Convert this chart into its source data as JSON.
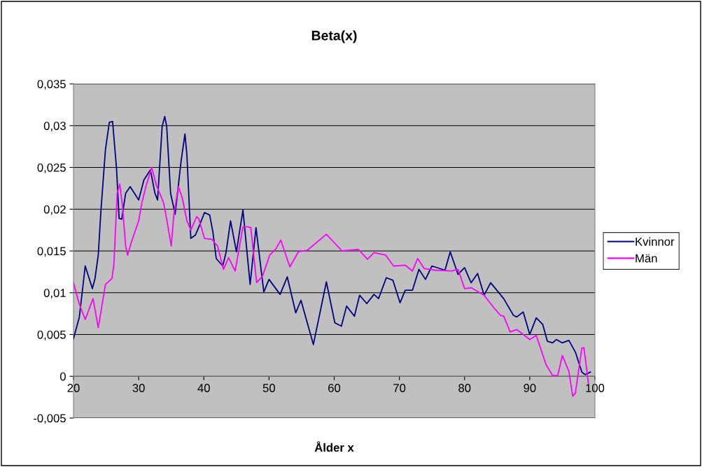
{
  "chart_data": {
    "type": "line",
    "title": "Beta(x)",
    "xlabel": "Ålder x",
    "xlim": [
      20,
      100
    ],
    "xticks": [
      20,
      30,
      40,
      50,
      60,
      70,
      80,
      90,
      100
    ],
    "ylim": [
      -0.005,
      0.035
    ],
    "yticks": [
      {
        "value": -0.005,
        "label": "-0,005"
      },
      {
        "value": 0,
        "label": "0"
      },
      {
        "value": 0.005,
        "label": "0,005"
      },
      {
        "value": 0.01,
        "label": "0,01"
      },
      {
        "value": 0.015,
        "label": "0,015"
      },
      {
        "value": 0.02,
        "label": "0,02"
      },
      {
        "value": 0.025,
        "label": "0,025"
      },
      {
        "value": 0.03,
        "label": "0,03"
      },
      {
        "value": 0.035,
        "label": "0,035"
      }
    ],
    "grid": "y",
    "legend": "right",
    "marker": "none",
    "line_style": "solid",
    "series": [
      {
        "name": "Kvinnor",
        "color": "#000080",
        "x": [
          20,
          20.9,
          21.8,
          22.9,
          23.3,
          23.8,
          24.2,
          24.9,
          25.5,
          26.0,
          26.6,
          27.0,
          27.4,
          28.0,
          28.7,
          30.0,
          30.8,
          31.8,
          32.5,
          32.9,
          33.6,
          34.0,
          34.3,
          34.9,
          35.6,
          36.5,
          37.1,
          37.4,
          38.0,
          38.7,
          39.3,
          40.1,
          40.9,
          41.4,
          41.9,
          42.9,
          43.4,
          44.1,
          45.0,
          46.0,
          47.1,
          48.0,
          49.2,
          50.0,
          51.7,
          52.8,
          54.1,
          54.9,
          56.8,
          58.8,
          60.1,
          61.1,
          61.9,
          63.1,
          63.9,
          65.0,
          66.1,
          66.8,
          68.0,
          69.0,
          70.1,
          70.9,
          72.0,
          73.0,
          74.0,
          75.0,
          77.0,
          77.8,
          79.0,
          80.0,
          81.0,
          82.0,
          83.0,
          84.0,
          86.0,
          87.5,
          88.0,
          89.0,
          90.0,
          91.0,
          92.0,
          92.7,
          93.5,
          94.1,
          95.0,
          96.0,
          97.0,
          98.0,
          98.5,
          99.3
        ],
        "values": [
          0.0045,
          0.0071,
          0.0132,
          0.0105,
          0.0117,
          0.0145,
          0.0197,
          0.0271,
          0.0304,
          0.0305,
          0.0249,
          0.0189,
          0.0188,
          0.0219,
          0.0227,
          0.0211,
          0.0235,
          0.0247,
          0.0219,
          0.0211,
          0.0299,
          0.0311,
          0.0299,
          0.0219,
          0.0194,
          0.0257,
          0.029,
          0.0265,
          0.0165,
          0.0169,
          0.018,
          0.0196,
          0.0193,
          0.0172,
          0.0141,
          0.0132,
          0.0148,
          0.0186,
          0.0149,
          0.0199,
          0.011,
          0.0178,
          0.0101,
          0.0116,
          0.0098,
          0.0119,
          0.0076,
          0.0091,
          0.0038,
          0.0113,
          0.0064,
          0.006,
          0.0084,
          0.0072,
          0.0097,
          0.0087,
          0.0098,
          0.0093,
          0.0118,
          0.0115,
          0.0088,
          0.0103,
          0.0103,
          0.0128,
          0.0116,
          0.0132,
          0.0127,
          0.0149,
          0.0122,
          0.013,
          0.0112,
          0.0123,
          0.0097,
          0.0112,
          0.0093,
          0.0073,
          0.0071,
          0.0077,
          0.005,
          0.007,
          0.0062,
          0.0042,
          0.004,
          0.0044,
          0.004,
          0.0043,
          0.0029,
          0.0005,
          0.0002,
          0.0005
        ]
      },
      {
        "name": "Män",
        "color": "#ff00ff",
        "x": [
          20,
          20.9,
          21.8,
          23.0,
          23.8,
          24.9,
          25.9,
          26.2,
          26.7,
          27.1,
          27.5,
          28.0,
          28.3,
          28.9,
          30.0,
          30.5,
          31.1,
          32.0,
          32.7,
          33.8,
          34.3,
          35.0,
          35.4,
          36.1,
          36.7,
          37.4,
          38.0,
          38.9,
          39.2,
          40.1,
          41.2,
          42.1,
          43.0,
          43.8,
          44.8,
          46.0,
          46.7,
          47.2,
          48.1,
          49.0,
          50.1,
          51.0,
          51.8,
          53.2,
          54.5,
          55.9,
          58.8,
          61.2,
          63.7,
          65.1,
          66.1,
          67.9,
          69.1,
          70.9,
          72.0,
          72.8,
          73.8,
          75.5,
          78.0,
          79.0,
          80.0,
          81.0,
          83.0,
          84.5,
          85.5,
          86.0,
          87.0,
          88.0,
          90.0,
          91.0,
          92.5,
          93.5,
          94.3,
          95.0,
          96.0,
          96.6,
          97.0,
          98.0,
          98.3,
          98.6,
          99.0
        ],
        "values": [
          0.0112,
          0.0086,
          0.0068,
          0.0093,
          0.0058,
          0.011,
          0.0117,
          0.0134,
          0.0219,
          0.023,
          0.0205,
          0.0156,
          0.0145,
          0.0161,
          0.0186,
          0.0208,
          0.0227,
          0.025,
          0.0229,
          0.0208,
          0.0188,
          0.0156,
          0.0194,
          0.0227,
          0.0213,
          0.0186,
          0.0175,
          0.0191,
          0.0189,
          0.0165,
          0.0164,
          0.0156,
          0.0128,
          0.0142,
          0.0126,
          0.0179,
          0.0179,
          0.0178,
          0.0112,
          0.012,
          0.0145,
          0.0152,
          0.0163,
          0.0131,
          0.0149,
          0.0151,
          0.017,
          0.015,
          0.0152,
          0.014,
          0.0148,
          0.0145,
          0.0132,
          0.0133,
          0.0126,
          0.0141,
          0.0129,
          0.0127,
          0.0126,
          0.0128,
          0.0105,
          0.0106,
          0.0097,
          0.0082,
          0.0073,
          0.0072,
          0.0053,
          0.0056,
          0.0044,
          0.0049,
          0.0014,
          0.0001,
          0.0001,
          0.0025,
          0.0006,
          -0.0024,
          -0.002,
          0.0034,
          0.0034,
          0.0017,
          -0.0009
        ]
      }
    ]
  }
}
